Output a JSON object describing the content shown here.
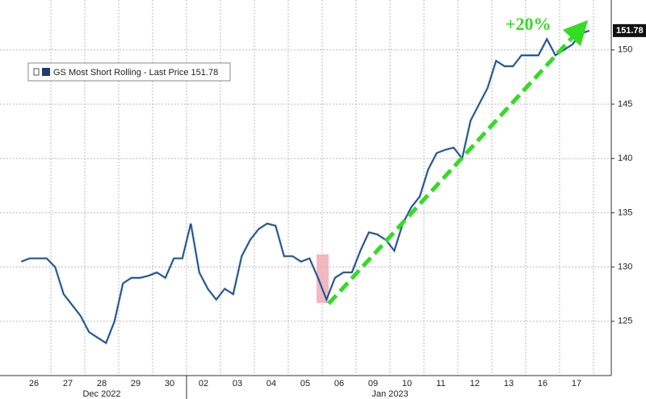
{
  "chart_data": {
    "type": "line",
    "categories": [
      "26",
      null,
      null,
      null,
      "27",
      null,
      null,
      null,
      "28",
      null,
      null,
      null,
      "29",
      null,
      null,
      null,
      "30",
      null,
      null,
      null,
      "02",
      null,
      null,
      null,
      "03",
      null,
      null,
      null,
      "04",
      null,
      null,
      null,
      "05",
      null,
      null,
      null,
      "06",
      null,
      null,
      null,
      "09",
      null,
      null,
      null,
      "10",
      null,
      null,
      null,
      "11",
      null,
      null,
      null,
      "12",
      null,
      null,
      null,
      "13",
      null,
      null,
      null,
      "16",
      null,
      null,
      null,
      "17",
      null,
      null,
      null
    ],
    "x_groups": [
      "Dec 2022",
      "Jan 2023"
    ],
    "series": [
      {
        "name": "GS Most Short Rolling - Last Price 151.78",
        "color": "#1d3f66",
        "values": [
          130.5,
          130.8,
          130.8,
          130.8,
          130,
          127.5,
          126.5,
          125.5,
          124,
          123.5,
          123,
          125,
          128.5,
          129,
          129,
          129.2,
          129.5,
          129,
          130.8,
          130.8,
          134,
          129.5,
          128,
          127,
          128,
          127.5,
          131,
          132.5,
          133.5,
          134,
          133.8,
          131,
          131,
          130.5,
          130.8,
          129,
          127,
          129,
          129.5,
          129.5,
          131.5,
          133.2,
          133,
          132.5,
          131.5,
          134,
          135.5,
          136.5,
          139,
          140.5,
          140.8,
          141,
          140,
          143.5,
          145,
          146.5,
          149,
          148.5,
          148.5,
          149.5,
          149.5,
          149.5,
          151,
          149.5,
          150,
          150.5,
          151.5,
          151.78
        ]
      }
    ],
    "ylim": [
      120,
      154.6
    ],
    "yticks": [
      125,
      130,
      135,
      140,
      145,
      150
    ],
    "grid": true,
    "annotation": "+20%"
  }
}
